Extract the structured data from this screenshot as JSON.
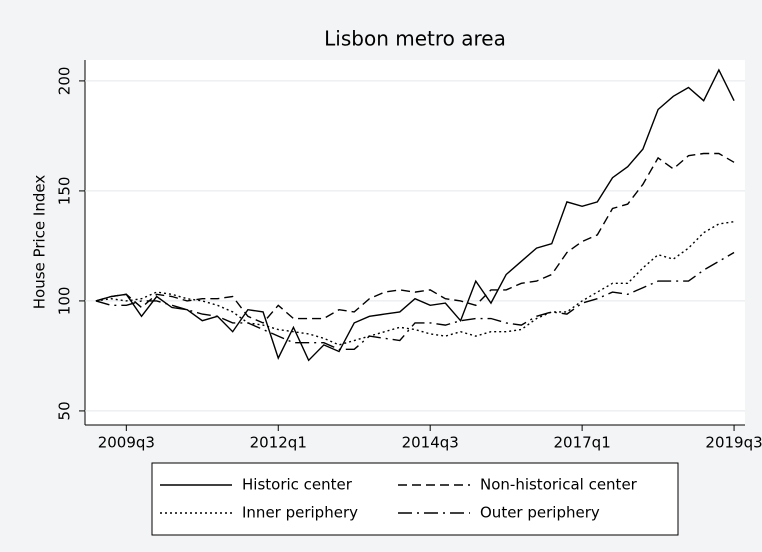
{
  "chart_data": {
    "type": "line",
    "title": "Lisbon metro area",
    "y_label": "House Price Index",
    "x": [
      2009,
      2009.25,
      2009.5,
      2009.75,
      2010,
      2010.25,
      2010.5,
      2010.75,
      2011,
      2011.25,
      2011.5,
      2011.75,
      2012,
      2012.25,
      2012.5,
      2012.75,
      2013,
      2013.25,
      2013.5,
      2013.75,
      2014,
      2014.25,
      2014.5,
      2014.75,
      2015,
      2015.25,
      2015.5,
      2015.75,
      2016,
      2016.25,
      2016.5,
      2016.75,
      2017,
      2017.25,
      2017.5,
      2017.75,
      2018,
      2018.25,
      2018.5,
      2018.75,
      2019,
      2019.25,
      2019.5
    ],
    "series": [
      {
        "name": "Historic center",
        "color": "#000000",
        "line_style": "solid",
        "values": [
          100,
          102,
          103,
          93,
          102,
          97,
          96,
          91,
          93,
          86,
          96,
          95,
          74,
          88,
          73,
          80,
          77,
          90,
          93,
          94,
          95,
          101,
          98,
          99,
          91,
          109,
          99,
          112,
          118,
          124,
          126,
          145,
          143,
          145,
          156,
          161,
          169,
          187,
          193,
          197,
          191,
          205,
          191
        ]
      },
      {
        "name": "Non-historical center",
        "color": "#000000",
        "line_style": "dashed",
        "values": [
          100,
          102,
          103,
          97,
          103,
          102,
          100,
          101,
          101,
          102,
          93,
          90,
          98,
          92,
          92,
          92,
          96,
          95,
          101,
          104,
          105,
          104,
          105,
          101,
          100,
          98,
          105,
          105,
          108,
          109,
          112,
          122,
          127,
          130,
          142,
          144,
          153,
          165,
          160,
          166,
          167,
          167,
          163
        ]
      },
      {
        "name": "Inner periphery",
        "color": "#000000",
        "line_style": "dotted",
        "values": [
          100,
          101,
          100,
          101,
          104,
          103,
          101,
          100,
          98,
          95,
          90,
          89,
          87,
          86,
          85,
          83,
          80,
          82,
          84,
          86,
          88,
          87,
          85,
          84,
          86,
          84,
          86,
          86,
          87,
          92,
          95,
          95,
          100,
          104,
          108,
          108,
          115,
          121,
          119,
          124,
          131,
          135,
          136
        ]
      },
      {
        "name": "Outer periphery",
        "color": "#000000",
        "line_style": "dashdot",
        "values": [
          100,
          98,
          98,
          100,
          100,
          98,
          96,
          94,
          93,
          90,
          90,
          87,
          84,
          81,
          81,
          81,
          78,
          78,
          84,
          83,
          82,
          90,
          90,
          89,
          91,
          92,
          92,
          90,
          89,
          93,
          95,
          94,
          99,
          101,
          104,
          103,
          106,
          109,
          109,
          109,
          114,
          118,
          122
        ]
      }
    ],
    "xlim": [
      2008.82,
      2019.68
    ],
    "xticks": [
      {
        "value": 2009.5,
        "label": "2009q3"
      },
      {
        "value": 2012,
        "label": "2012q1"
      },
      {
        "value": 2014.5,
        "label": "2014q3"
      },
      {
        "value": 2017,
        "label": "2017q1"
      },
      {
        "value": 2019.5,
        "label": "2019q3"
      }
    ],
    "ylim": [
      43.6,
      209.5
    ],
    "yticks": [
      50,
      100,
      150,
      200
    ],
    "grid": true
  }
}
